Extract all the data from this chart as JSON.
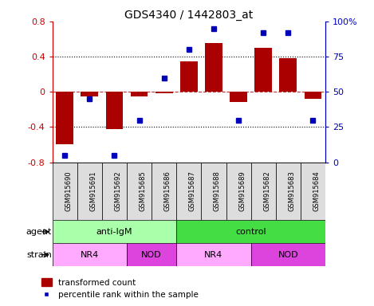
{
  "title": "GDS4340 / 1442803_at",
  "samples": [
    "GSM915690",
    "GSM915691",
    "GSM915692",
    "GSM915685",
    "GSM915686",
    "GSM915687",
    "GSM915688",
    "GSM915689",
    "GSM915682",
    "GSM915683",
    "GSM915684"
  ],
  "bar_values": [
    -0.6,
    -0.05,
    -0.42,
    -0.05,
    -0.02,
    0.35,
    0.55,
    -0.12,
    0.5,
    0.38,
    -0.08
  ],
  "blue_values": [
    5,
    45,
    5,
    30,
    60,
    80,
    95,
    30,
    92,
    92,
    30
  ],
  "bar_color": "#aa0000",
  "blue_color": "#0000bb",
  "ylim": [
    -0.8,
    0.8
  ],
  "y2lim": [
    0,
    100
  ],
  "yticks": [
    -0.8,
    -0.4,
    0.0,
    0.4,
    0.8
  ],
  "ytick_labels": [
    "-0.8",
    "-0.4",
    "0",
    "0.4",
    "0.8"
  ],
  "y2ticks": [
    0,
    25,
    50,
    75,
    100
  ],
  "y2tick_labels": [
    "0",
    "25",
    "50",
    "75",
    "100%"
  ],
  "agent_labels": [
    {
      "text": "anti-IgM",
      "start": 0,
      "end": 4,
      "color": "#aaffaa"
    },
    {
      "text": "control",
      "start": 5,
      "end": 10,
      "color": "#44dd44"
    }
  ],
  "strain_labels": [
    {
      "text": "NR4",
      "start": 0,
      "end": 2,
      "color": "#ffaaff"
    },
    {
      "text": "NOD",
      "start": 3,
      "end": 4,
      "color": "#dd44dd"
    },
    {
      "text": "NR4",
      "start": 5,
      "end": 7,
      "color": "#ffaaff"
    },
    {
      "text": "NOD",
      "start": 8,
      "end": 10,
      "color": "#dd44dd"
    }
  ],
  "legend_bar_label": "transformed count",
  "legend_dot_label": "percentile rank within the sample",
  "agent_row_label": "agent",
  "strain_row_label": "strain",
  "tick_color_left": "#cc0000",
  "tick_color_right": "#0000bb",
  "sample_box_color": "#dddddd"
}
